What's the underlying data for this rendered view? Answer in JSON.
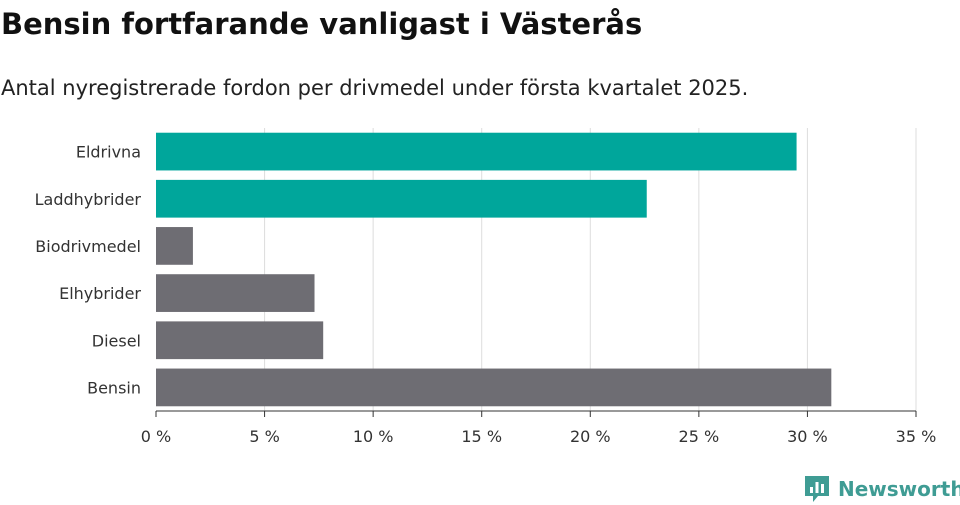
{
  "header": {
    "title": "Bensin fortfarande vanligast i Västerås",
    "subtitle": "Antal nyregistrerade fordon per drivmedel under första kvartalet 2025."
  },
  "brand": {
    "name": "Newsworthy",
    "color": "#3f9c94",
    "icon": "newsworthy-logo-icon"
  },
  "colors": {
    "highlight": "#00a69b",
    "default": "#6e6d73",
    "grid": "#dddddd",
    "axis": "#333333"
  },
  "chart_data": {
    "type": "bar",
    "orientation": "horizontal",
    "categories": [
      "Eldrivna",
      "Laddhybrider",
      "Biodrivmedel",
      "Elhybrider",
      "Diesel",
      "Bensin"
    ],
    "values": [
      29.5,
      22.6,
      1.7,
      7.3,
      7.7,
      31.1
    ],
    "highlighted": [
      true,
      true,
      false,
      false,
      false,
      false
    ],
    "xlim": [
      0,
      35
    ],
    "xticks": [
      0,
      5,
      10,
      15,
      20,
      25,
      30,
      35
    ],
    "tick_suffix": " %",
    "grid": true
  }
}
